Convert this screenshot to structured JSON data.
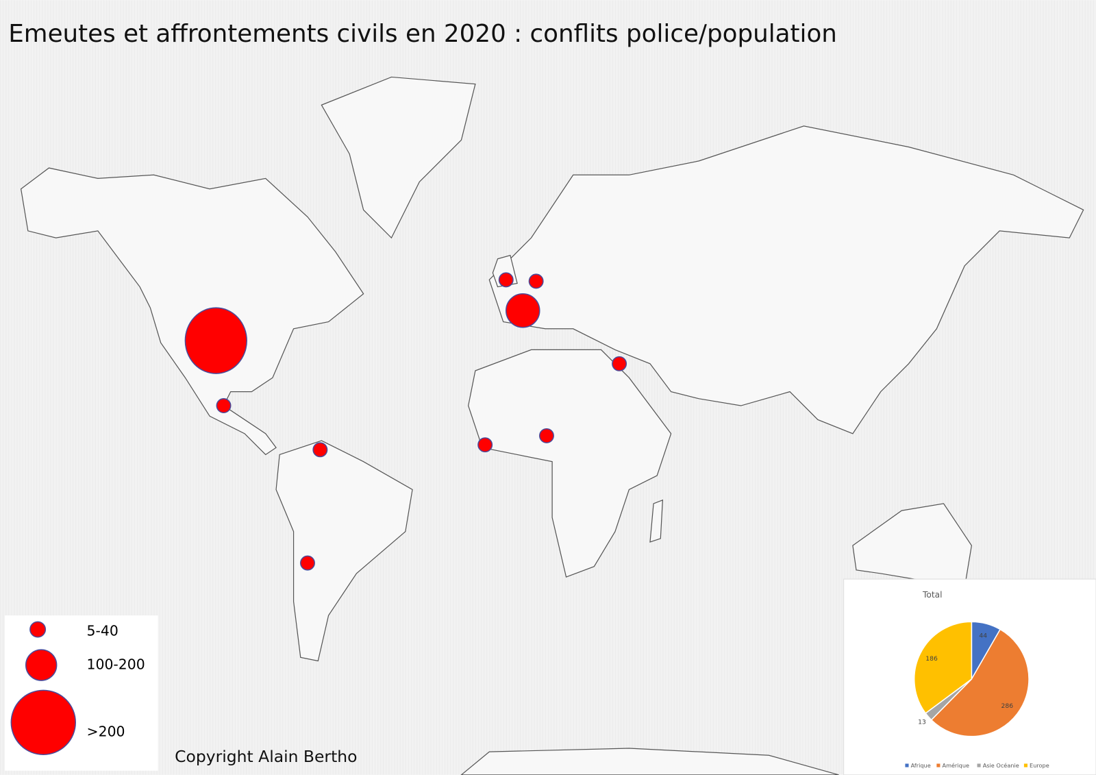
{
  "title": "Emeutes et affrontements civils en 2020 : conflits police/population",
  "legend": [
    {
      "label": "5-40"
    },
    {
      "label": "100-200"
    },
    {
      "label": ">200"
    }
  ],
  "copyright": "Copyright Alain Bertho",
  "chart_data": {
    "type": "pie",
    "title": "Total",
    "categories": [
      "Afrique",
      "Amérique",
      "Asie Océanie",
      "Europe"
    ],
    "values": [
      44,
      286,
      13,
      186
    ],
    "colors": [
      "#4472c4",
      "#ed7d31",
      "#a5a5a5",
      "#ffc000"
    ]
  }
}
